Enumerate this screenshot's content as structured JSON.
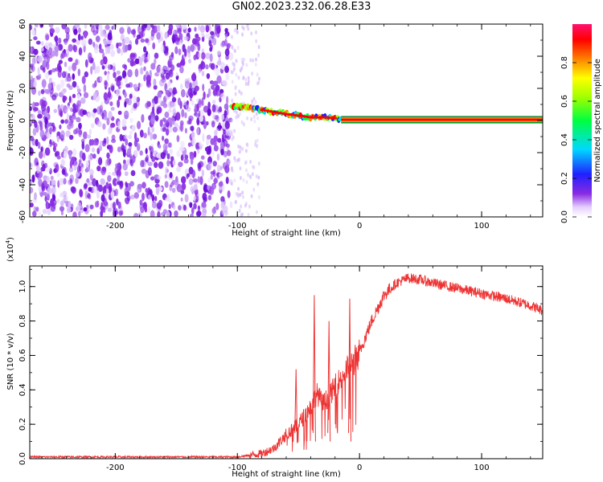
{
  "title": "GN02.2023.232.06.28.E33",
  "colors": {
    "trace": "#ee3333",
    "axis": "#000000"
  },
  "chart_data": [
    {
      "type": "heatmap",
      "xlabel": "Height of straight line (km)",
      "ylabel": "Frequency (Hz)",
      "xlim": [
        -270,
        150
      ],
      "ylim": [
        -60,
        60
      ],
      "x_ticks": [
        -200,
        -100,
        0,
        100
      ],
      "y_ticks": [
        -60,
        -40,
        -20,
        0,
        20,
        40,
        60
      ],
      "x_tick_labels": [
        "-200",
        "-100",
        "0",
        "100"
      ],
      "y_tick_labels": [
        "-60",
        "-40",
        "-20",
        "0",
        "20",
        "40",
        "60"
      ],
      "noise_region_x": [
        -270,
        -105
      ],
      "fading_noise_x": [
        -105,
        -82
      ],
      "ridge": {
        "x": [
          -105,
          -90,
          -75,
          -60,
          -50,
          -40,
          -30,
          -20,
          -15,
          0,
          50,
          100,
          150
        ],
        "freq": [
          9,
          8,
          6,
          4,
          3,
          2,
          2,
          1.5,
          1,
          0.5,
          0.5,
          0.5,
          0.5
        ]
      },
      "colorbar": {
        "label": "Normalized spectral amplitude",
        "range": [
          0,
          1
        ],
        "ticks": [
          "0.0",
          "0.2",
          "0.4",
          "0.6",
          "0.8"
        ],
        "tick_values": [
          0,
          0.2,
          0.4,
          0.6,
          0.8
        ]
      }
    },
    {
      "type": "line",
      "xlabel": "Height of straight line (km)",
      "ylabel": "SNR (10 * v/v)",
      "y_exponent_label": "(x10",
      "y_exponent_power": "4",
      "y_exponent_close": ")",
      "xlim": [
        -270,
        150
      ],
      "ylim": [
        0,
        1.12
      ],
      "x_ticks": [
        -200,
        -100,
        0,
        100
      ],
      "y_ticks": [
        0,
        0.2,
        0.4,
        0.6,
        0.8,
        1.0
      ],
      "x_tick_labels": [
        "-200",
        "-100",
        "0",
        "100"
      ],
      "y_tick_labels": [
        "0.0",
        "0.2",
        "0.4",
        "0.6",
        "0.8",
        "1.0"
      ],
      "series": [
        {
          "x": [
            -270,
            -250,
            -200,
            -150,
            -100,
            -90,
            -80,
            -70,
            -60,
            -50,
            -40,
            -35,
            -30,
            -25,
            -20,
            -15,
            -10,
            -5,
            0,
            10,
            20,
            30,
            40,
            50,
            60,
            80,
            100,
            120,
            140,
            150
          ],
          "values": [
            0.01,
            0.01,
            0.01,
            0.01,
            0.01,
            0.02,
            0.03,
            0.06,
            0.14,
            0.2,
            0.3,
            0.38,
            0.32,
            0.36,
            0.42,
            0.47,
            0.52,
            0.56,
            0.62,
            0.8,
            0.95,
            1.02,
            1.05,
            1.04,
            1.02,
            0.99,
            0.96,
            0.93,
            0.89,
            0.86
          ]
        }
      ],
      "spikes": [
        {
          "x": -52,
          "value": 0.52
        },
        {
          "x": -37,
          "value": 0.95
        },
        {
          "x": -25,
          "value": 0.8
        },
        {
          "x": -8,
          "value": 0.93
        }
      ]
    }
  ]
}
